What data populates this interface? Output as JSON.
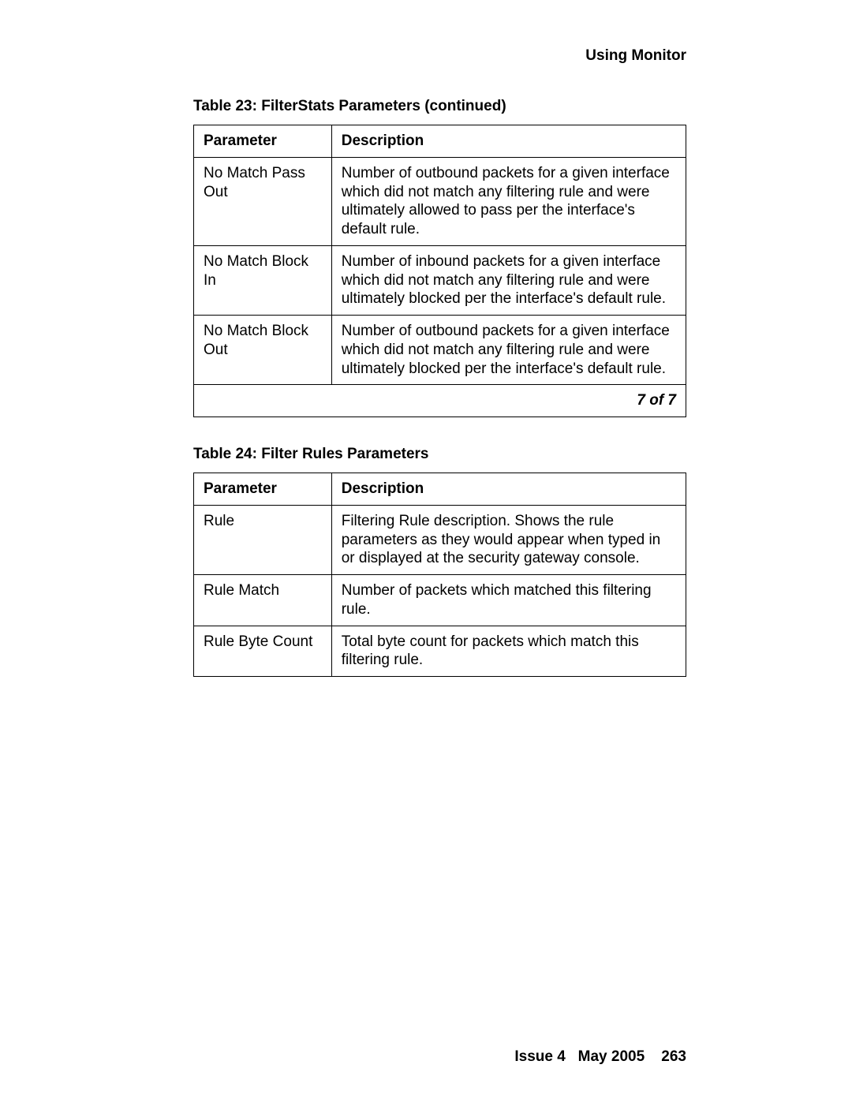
{
  "header": {
    "title": "Using Monitor"
  },
  "table23": {
    "caption": "Table 23: FilterStats Parameters (continued)",
    "columns": [
      "Parameter",
      "Description"
    ],
    "rows": [
      [
        "No Match Pass Out",
        "Number of outbound packets for a given interface which did not match any filtering rule and were ultimately allowed to pass per the interface's default rule."
      ],
      [
        "No Match Block In",
        "Number of inbound packets for a given interface which did not match any filtering rule and were ultimately blocked per the interface's default rule."
      ],
      [
        "No Match Block Out",
        "Number of outbound packets for a given interface which did not match any filtering rule and were ultimately blocked per the interface's default rule."
      ]
    ],
    "pager": "7 of 7"
  },
  "table24": {
    "caption": "Table 24: Filter Rules Parameters",
    "columns": [
      "Parameter",
      "Description"
    ],
    "rows": [
      [
        "Rule",
        "Filtering Rule description. Shows the rule parameters as they would appear when typed in or displayed at the security gateway console."
      ],
      [
        "Rule Match",
        "Number of packets which matched this filtering rule."
      ],
      [
        "Rule Byte Count",
        "Total byte count for packets which match this filtering rule."
      ]
    ]
  },
  "footer": {
    "issue": "Issue 4",
    "date": "May 2005",
    "page": "263"
  }
}
